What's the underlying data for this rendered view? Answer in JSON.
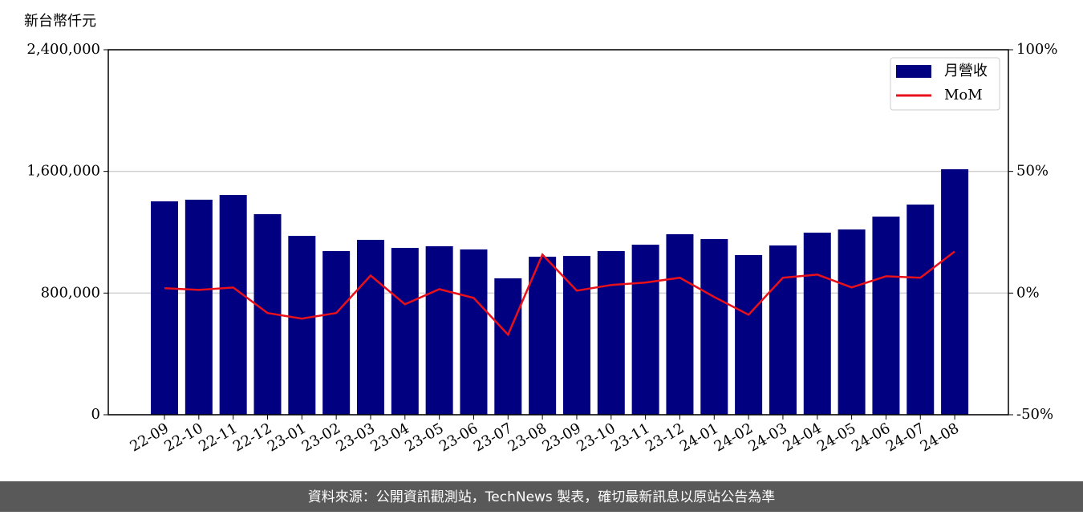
{
  "chart_data": {
    "type": "bar",
    "y_label": "新台幣仟元",
    "categories": [
      "22-09",
      "22-10",
      "22-11",
      "22-12",
      "23-01",
      "23-02",
      "23-03",
      "23-04",
      "23-05",
      "23-06",
      "23-07",
      "23-08",
      "23-09",
      "23-10",
      "23-11",
      "23-12",
      "24-01",
      "24-02",
      "24-03",
      "24-04",
      "24-05",
      "24-06",
      "24-07",
      "24-08"
    ],
    "series": [
      {
        "name": "月營收",
        "type": "bar",
        "color": "#000080",
        "values": [
          1403000,
          1414000,
          1445000,
          1319000,
          1176000,
          1076000,
          1150000,
          1097000,
          1108000,
          1087000,
          897000,
          1039000,
          1044000,
          1076000,
          1118000,
          1187000,
          1155000,
          1050000,
          1113000,
          1197000,
          1218000,
          1303000,
          1382000,
          1614000
        ]
      },
      {
        "name": "MoM",
        "type": "line",
        "axis": "y2",
        "color": "#e8101a",
        "values": [
          2,
          1.3,
          2.3,
          -8.2,
          -10.5,
          -8.2,
          7.2,
          -4.6,
          1.6,
          -2,
          -17.1,
          15.8,
          1,
          3.3,
          4.3,
          6.3,
          -1.6,
          -8.9,
          6.3,
          7.6,
          2.3,
          6.9,
          6.3,
          17.1
        ]
      }
    ],
    "ylim": [
      0,
      2400000
    ],
    "yticks": [
      0,
      {
        "value": 800000,
        "label": "800,000"
      },
      {
        "value": 1600000,
        "label": "1,600,000"
      },
      {
        "value": 2400000,
        "label": "2,400,000"
      }
    ],
    "y2lim": [
      -50,
      100
    ],
    "y2ticks": [
      {
        "value": -50,
        "label": "-50%"
      },
      {
        "value": 0,
        "label": "0%"
      },
      {
        "value": 50,
        "label": "50%"
      },
      {
        "value": 100,
        "label": "100%"
      }
    ],
    "grid": true,
    "legend": "upper right"
  },
  "footer": "資料來源：公開資訊觀測站，TechNews 製表，確切最新訊息以原站公告為準"
}
